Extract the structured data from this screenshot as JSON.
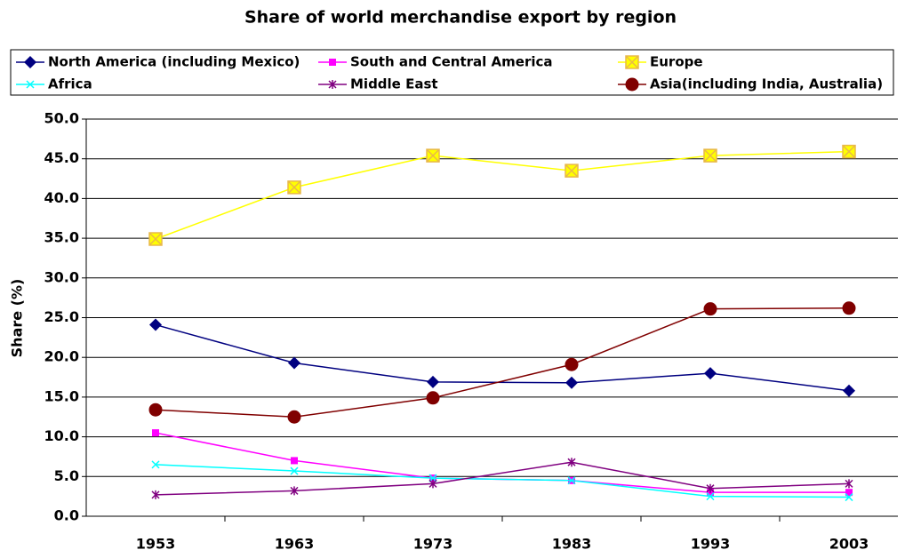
{
  "chart_data": {
    "type": "line",
    "title": "Share of world merchandise export by region",
    "y_label": "Share (%)",
    "categories": [
      "1953",
      "1963",
      "1973",
      "1983",
      "1993",
      "2003"
    ],
    "series": [
      {
        "name": "North America (including Mexico)",
        "color": "#000080",
        "marker": "diamond",
        "values": [
          24.1,
          19.3,
          16.9,
          16.8,
          18.0,
          15.8
        ]
      },
      {
        "name": "South and Central America",
        "color": "#ff00ff",
        "marker": "square",
        "values": [
          10.5,
          7.0,
          4.8,
          4.5,
          3.0,
          3.0
        ]
      },
      {
        "name": "Europe",
        "color": "#ffff00",
        "marker": "boxx",
        "values": [
          34.9,
          41.4,
          45.4,
          43.5,
          45.4,
          45.9
        ]
      },
      {
        "name": "Africa",
        "color": "#00ffff",
        "marker": "x",
        "values": [
          6.5,
          5.7,
          4.8,
          4.5,
          2.5,
          2.4
        ]
      },
      {
        "name": "Middle East",
        "color": "#800080",
        "marker": "star",
        "values": [
          2.7,
          3.2,
          4.1,
          6.8,
          3.5,
          4.1
        ]
      },
      {
        "name": "Asia(including India, Australia)",
        "color": "#800000",
        "marker": "circle",
        "values": [
          13.4,
          12.5,
          14.9,
          19.1,
          26.1,
          26.2
        ]
      }
    ],
    "ylim": [
      0,
      50
    ],
    "yticks": [
      {
        "value": 0,
        "label": "0.0"
      },
      {
        "value": 5,
        "label": "5.0"
      },
      {
        "value": 10,
        "label": "10.0"
      },
      {
        "value": 15,
        "label": "15.0"
      },
      {
        "value": 20,
        "label": "20.0"
      },
      {
        "value": 25,
        "label": "25.0"
      },
      {
        "value": 30,
        "label": "30.0"
      },
      {
        "value": 35,
        "label": "35.0"
      },
      {
        "value": 40,
        "label": "40.0"
      },
      {
        "value": 45,
        "label": "45.0"
      },
      {
        "value": 50,
        "label": "50.0"
      }
    ],
    "grid": true,
    "legend": "top"
  }
}
